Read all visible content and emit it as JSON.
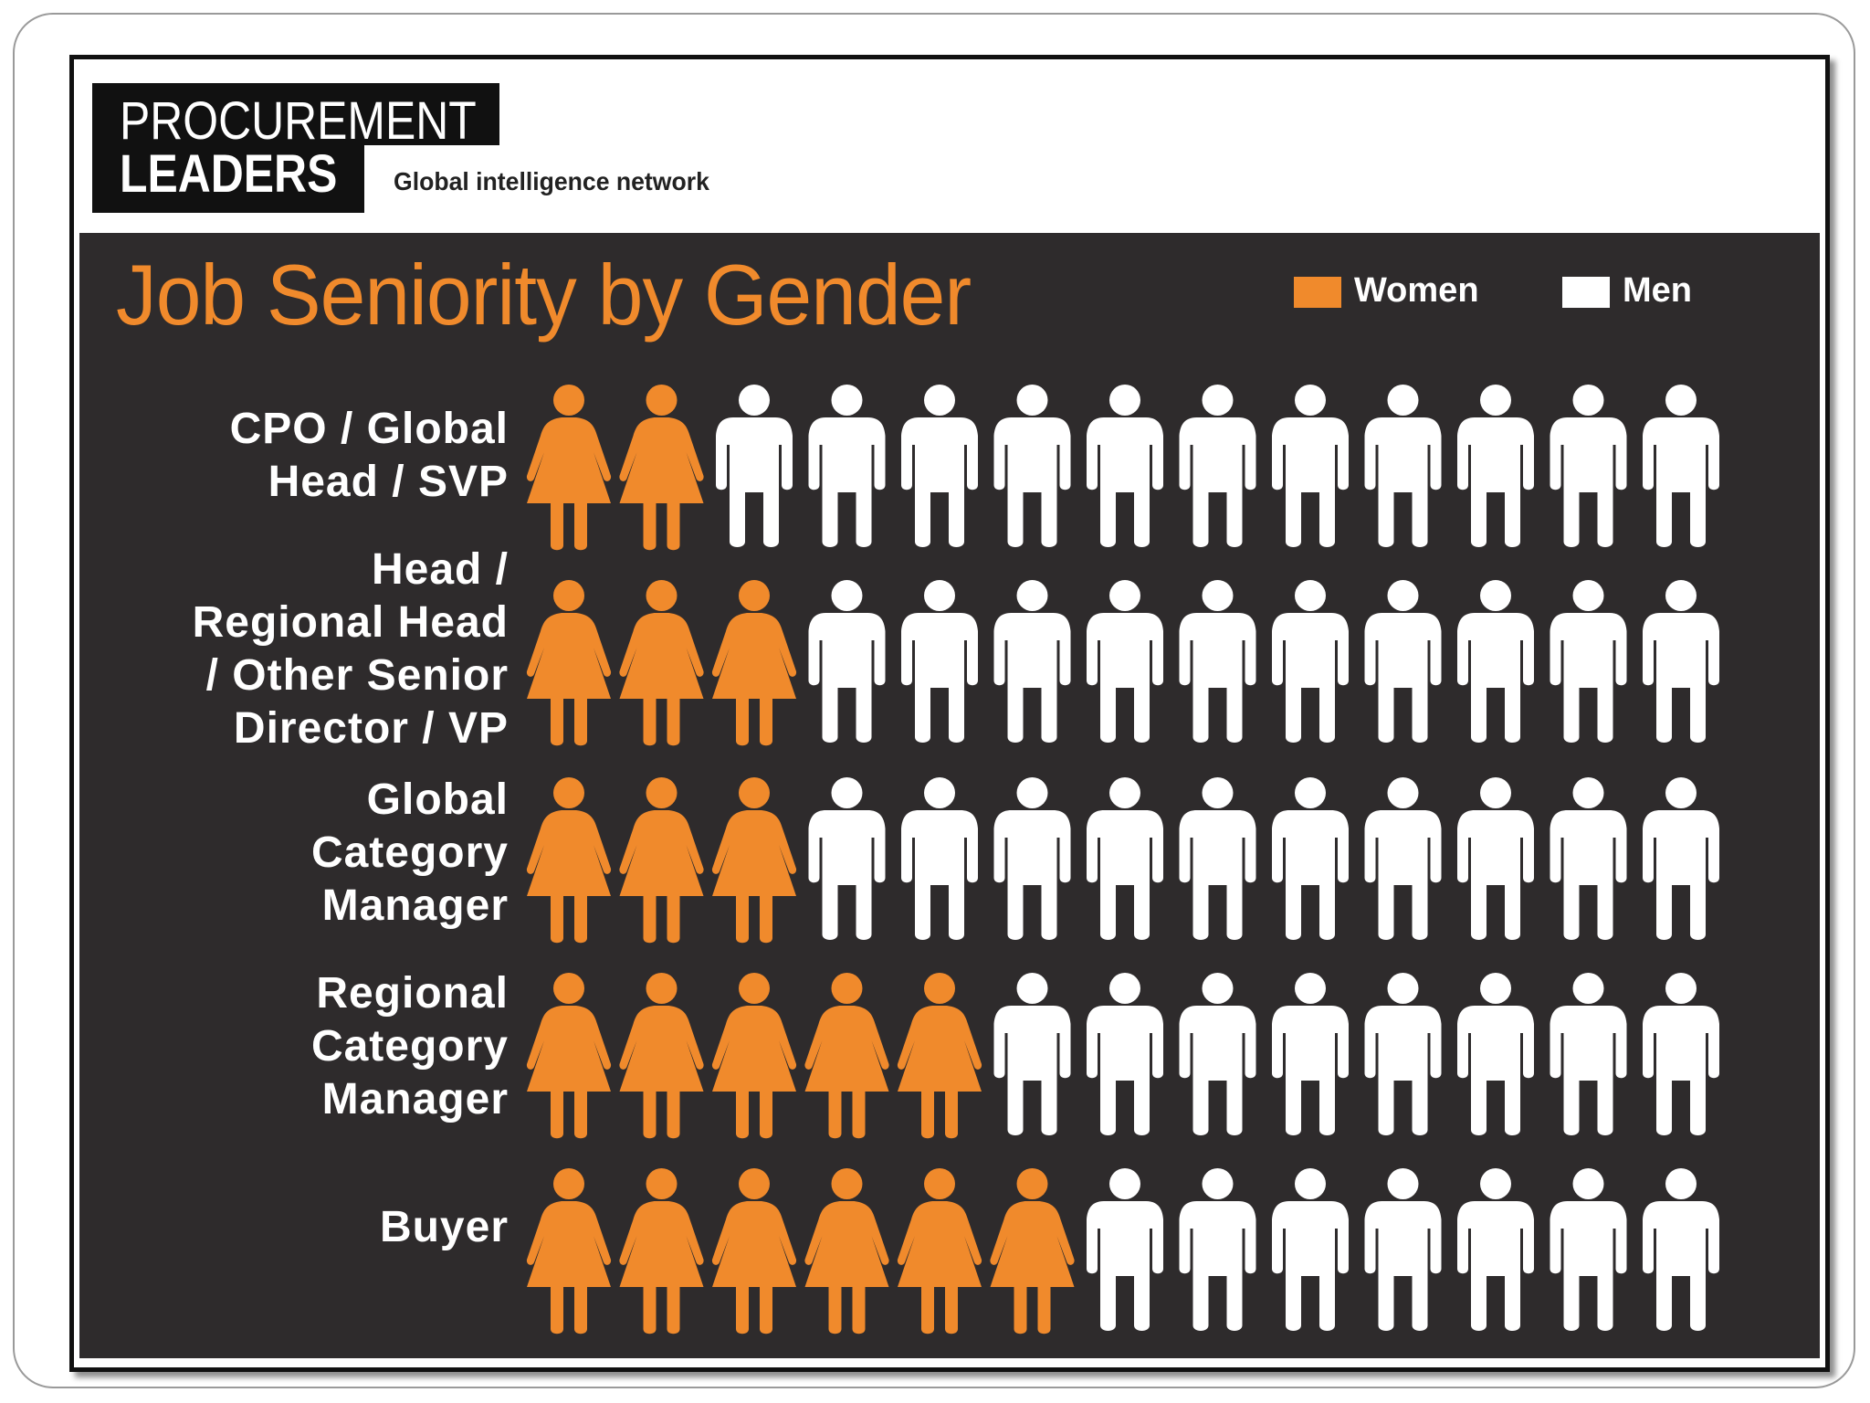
{
  "logo": {
    "line1": "PROCUREMENT",
    "line2": "LEADERS",
    "tagline": "Global intelligence network"
  },
  "colors": {
    "women": "#f08a2c",
    "men": "#ffffff",
    "background": "#2e2b2c"
  },
  "chart_data": {
    "type": "pictogram",
    "title": "Job Seniority by Gender",
    "legend": {
      "placement": "top-right",
      "items": [
        {
          "name": "Women",
          "color": "#f08a2c"
        },
        {
          "name": "Men",
          "color": "#ffffff"
        }
      ]
    },
    "icons_per_row": 13,
    "categories": [
      "CPO / Global\nHead / SVP",
      "Head /\nRegional Head\n/ Other Senior\nDirector / VP",
      "Global\nCategory\nManager",
      "Regional\nCategory\nManager",
      "Buyer"
    ],
    "series": [
      {
        "name": "Women",
        "values": [
          2,
          3,
          3,
          5,
          6
        ]
      },
      {
        "name": "Men",
        "values": [
          11,
          10,
          10,
          8,
          7
        ]
      }
    ]
  }
}
